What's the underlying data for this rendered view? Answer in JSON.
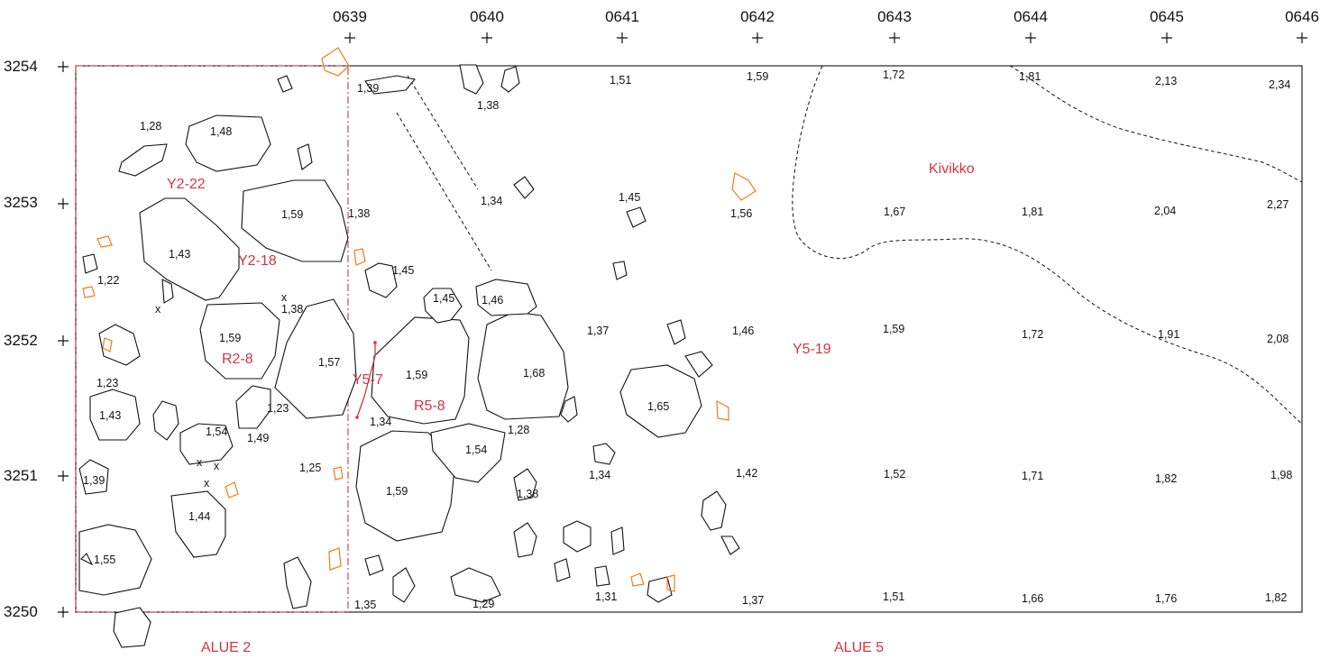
{
  "grid": {
    "x_labels": [
      "0639",
      "0640",
      "0641",
      "0642",
      "0643",
      "0644",
      "0645",
      "0646"
    ],
    "y_labels": [
      "3254",
      "3253",
      "3252",
      "3251",
      "3250"
    ]
  },
  "elevations": [
    "1,39",
    "1,51",
    "1,59",
    "1,72",
    "1,81",
    "2,13",
    "2,34",
    "1,38",
    "1,28",
    "1,48",
    "1,34",
    "1,45",
    "1,56",
    "1,67",
    "1,81",
    "2,04",
    "2,27",
    "1,38",
    "1,59",
    "1,43",
    "1,22",
    "1,45",
    "1,45",
    "1,46",
    "1,38",
    "1,59",
    "1,57",
    "1,59",
    "1,68",
    "1,37",
    "1,46",
    "1,59",
    "1,72",
    "1,91",
    "2,08",
    "1,23",
    "1,43",
    "1,23",
    "1,54",
    "1,49",
    "1,34",
    "1,28",
    "1,65",
    "1,54",
    "1,39",
    "1,25",
    "1,34",
    "1,42",
    "1,52",
    "1,71",
    "1,82",
    "1,98",
    "1,59",
    "1,38",
    "1,44",
    "1,55",
    "1,35",
    "1,29",
    "1,31",
    "1,37",
    "1,51",
    "1,66",
    "1,76",
    "1,82"
  ],
  "feature_labels": [
    "Y2-22",
    "Y2-18",
    "R2-8",
    "Y5-7",
    "R5-8",
    "Y5-19",
    "Kivikko"
  ],
  "area_labels": [
    "ALUE 2",
    "ALUE 5"
  ],
  "find_marks": [
    "x",
    "x",
    "x",
    "x",
    "x"
  ],
  "colors": {
    "ink": "#111111",
    "feature_red": "#d9333f",
    "orange_stone": "#ef7d1a",
    "background": "#ffffff"
  }
}
